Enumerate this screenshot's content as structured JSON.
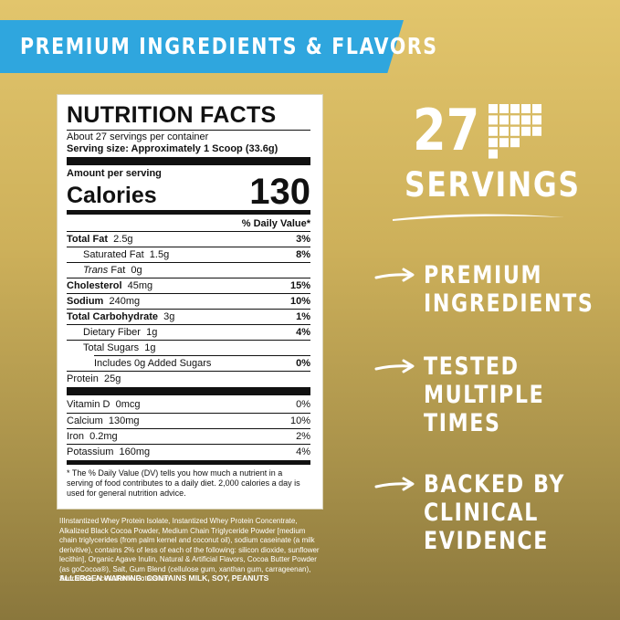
{
  "banner": {
    "text": "PREMIUM INGREDIENTS & FLAVORS"
  },
  "nutrition": {
    "title": "NUTRITION FACTS",
    "servings_per_container": "About 27 servings per container",
    "serving_size_label": "Serving size:",
    "serving_size_value": "Approximately 1 Scoop (33.6g)",
    "amount_per_serving": "Amount per serving",
    "calories_label": "Calories",
    "calories_value": "130",
    "dv_header": "% Daily Value*",
    "rows": {
      "total_fat": {
        "label": "Total Fat",
        "amount": "2.5g",
        "dv": "3%"
      },
      "saturated_fat": {
        "label": "Saturated Fat",
        "amount": "1.5g",
        "dv": "8%"
      },
      "trans_fat": {
        "label": "Trans",
        "label_rest": "Fat",
        "amount": "0g"
      },
      "cholesterol": {
        "label": "Cholesterol",
        "amount": "45mg",
        "dv": "15%"
      },
      "sodium": {
        "label": "Sodium",
        "amount": "240mg",
        "dv": "10%"
      },
      "total_carb": {
        "label": "Total Carbohydrate",
        "amount": "3g",
        "dv": "1%"
      },
      "dietary_fiber": {
        "label": "Dietary Fiber",
        "amount": "1g",
        "dv": "4%"
      },
      "total_sugars": {
        "label": "Total Sugars",
        "amount": "1g"
      },
      "added_sugars": {
        "label": "Includes 0g Added Sugars",
        "dv": "0%"
      },
      "protein": {
        "label": "Protein",
        "amount": "25g"
      },
      "vitamin_d": {
        "label": "Vitamin D",
        "amount": "0mcg",
        "dv": "0%"
      },
      "calcium": {
        "label": "Calcium",
        "amount": "130mg",
        "dv": "10%"
      },
      "iron": {
        "label": "Iron",
        "amount": "0.2mg",
        "dv": "2%"
      },
      "potassium": {
        "label": "Potassium",
        "amount": "160mg",
        "dv": "4%"
      }
    },
    "footnote": "* The % Daily Value (DV) tells you how much a nutrient in a serving of food contributes to a daily diet. 2,000 calories a day is used for general nutrition advice."
  },
  "ingredients": "IIInstantized Whey Protein Isolate, Instantized Whey Protein Concentrate, Alkalized Black Cocoa Powder, Medium Chain Triglyceride Powder [medium chain triglycerides (from palm kernel and coconut oil), sodium caseinate (a milk derivitive), contains 2% of less of each of the following: silicon dioxide, sunflower lecithin], Organic Agave Inulin, Natural & Artificial Flavors, Cocoa Butter Powder (as goCocoa®), Salt, Gum Blend (cellulose gum, xanthan gum, carrageenan), Sucralose, Acesulfame Potassium",
  "allergen": "ALLERGEN WARNING: CONTAINS MILK, SOY, PEANUTS",
  "servings": {
    "number": "27",
    "label": "SERVINGS",
    "icon": "grid-squares-icon"
  },
  "features": [
    {
      "lines": [
        "PREMIUM",
        "INGREDIENTS"
      ]
    },
    {
      "lines": [
        "TESTED",
        "MULTIPLE",
        "TIMES"
      ]
    },
    {
      "lines": [
        "BACKED BY",
        "CLINICAL",
        "EVIDENCE"
      ]
    }
  ],
  "colors": {
    "banner": "#2fa6de",
    "background_gold": "#d4b963",
    "text_white": "#ffffff"
  }
}
